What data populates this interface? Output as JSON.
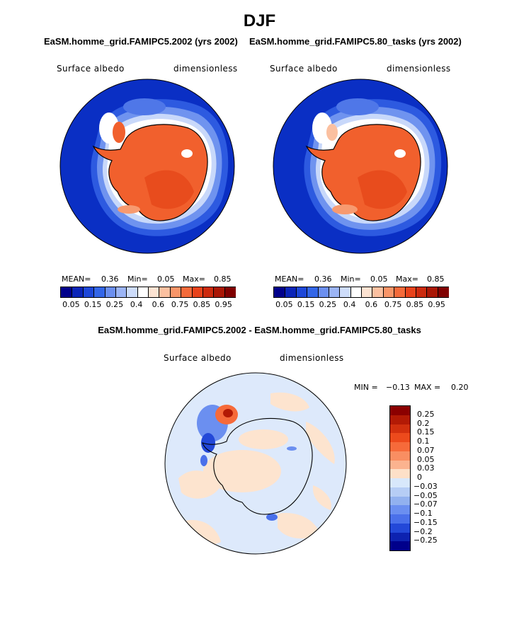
{
  "title": "DJF",
  "panels": [
    {
      "title": "EaSM.homme_grid.FAMIPC5.2002 (yrs 2002)",
      "variable": "Surface albedo",
      "units": "dimensionless",
      "mean_label": "MEAN=",
      "mean": "0.36",
      "min_label": "Min=",
      "min": "0.05",
      "max_label": "Max=",
      "max": "0.85"
    },
    {
      "title": "EaSM.homme_grid.FAMIPC5.80_tasks (yrs 2002)",
      "variable": "Surface albedo",
      "units": "dimensionless",
      "mean_label": "MEAN=",
      "mean": "0.36",
      "min_label": "Min=",
      "min": "0.05",
      "max_label": "Max=",
      "max": "0.85"
    }
  ],
  "colorbar": {
    "levels": [
      "0.05",
      "0.15",
      "0.25",
      "0.4",
      "0.6",
      "0.75",
      "0.85",
      "0.95"
    ],
    "colors": [
      "#00008b",
      "#0a24b8",
      "#1d47d9",
      "#3366e8",
      "#6b8ff0",
      "#9bb4f5",
      "#cddcfa",
      "#ffffff",
      "#fde3d2",
      "#fbc0a0",
      "#f99568",
      "#f46a3a",
      "#e8431b",
      "#cc2a0e",
      "#aa1605",
      "#800000"
    ]
  },
  "difference": {
    "title": "EaSM.homme_grid.FAMIPC5.2002 - EaSM.homme_grid.FAMIPC5.80_tasks",
    "variable": "Surface albedo",
    "units": "dimensionless",
    "min_label": "MIN =",
    "min": "−0.13",
    "max_label": "MAX =",
    "max": "0.20",
    "levels": [
      "0.25",
      "0.2",
      "0.15",
      "0.1",
      "0.07",
      "0.05",
      "0.03",
      "0",
      "−0.03",
      "−0.05",
      "−0.07",
      "−0.1",
      "−0.15",
      "−0.2",
      "−0.25"
    ],
    "colors": [
      "#8b0000",
      "#b31a05",
      "#d2300e",
      "#ec4a1c",
      "#f66a3a",
      "#f98e62",
      "#fbb38f",
      "#fde0c8",
      "#d8e8fb",
      "#b6cdf5",
      "#92b1ef",
      "#6b8ff0",
      "#4a70ea",
      "#2348d8",
      "#0d22b0",
      "#00008b"
    ]
  },
  "styles": {
    "ocean_blue": "#0a2fc4",
    "land_red": "#f1602d",
    "land_dark": "#e84c1d",
    "diff_background": "#dde9fb",
    "diff_pos": "#fde4cf"
  }
}
